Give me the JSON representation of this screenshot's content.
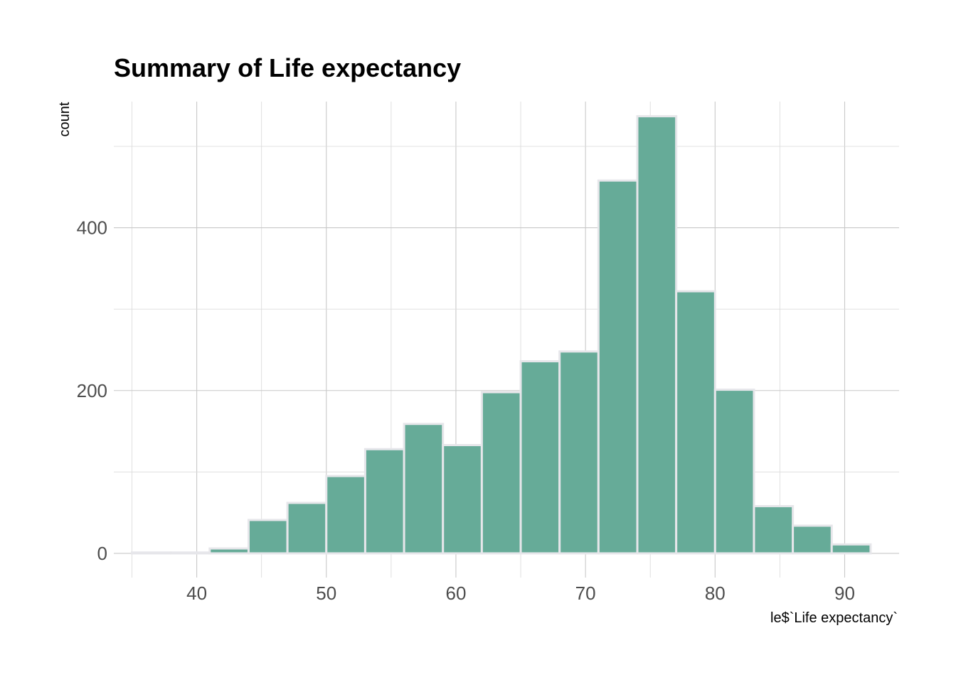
{
  "chart_data": {
    "type": "bar",
    "title": "Summary of Life expectancy",
    "xlabel": "le$`Life expectancy`",
    "ylabel": "count",
    "bar_color": "#66ab98",
    "bar_outline": "#e6e6ea",
    "xlim": [
      33.6,
      94.2
    ],
    "ylim": [
      -29.75,
      555
    ],
    "x_ticks": [
      40,
      50,
      60,
      70,
      80,
      90
    ],
    "y_ticks": [
      0,
      200,
      400
    ],
    "grid": true,
    "legend": "none",
    "bin_width": 3,
    "bins": [
      {
        "start": 35,
        "end": 38,
        "count": 1
      },
      {
        "start": 38,
        "end": 41,
        "count": 1
      },
      {
        "start": 41,
        "end": 44,
        "count": 6
      },
      {
        "start": 44,
        "end": 47,
        "count": 41
      },
      {
        "start": 47,
        "end": 50,
        "count": 62
      },
      {
        "start": 50,
        "end": 53,
        "count": 95
      },
      {
        "start": 53,
        "end": 56,
        "count": 128
      },
      {
        "start": 56,
        "end": 59,
        "count": 159
      },
      {
        "start": 59,
        "end": 62,
        "count": 133
      },
      {
        "start": 62,
        "end": 65,
        "count": 198
      },
      {
        "start": 65,
        "end": 68,
        "count": 236
      },
      {
        "start": 68,
        "end": 71,
        "count": 248
      },
      {
        "start": 71,
        "end": 74,
        "count": 458
      },
      {
        "start": 74,
        "end": 77,
        "count": 537
      },
      {
        "start": 77,
        "end": 80,
        "count": 322
      },
      {
        "start": 80,
        "end": 83,
        "count": 201
      },
      {
        "start": 83,
        "end": 86,
        "count": 58
      },
      {
        "start": 86,
        "end": 89,
        "count": 34
      },
      {
        "start": 89,
        "end": 92,
        "count": 11
      }
    ]
  }
}
